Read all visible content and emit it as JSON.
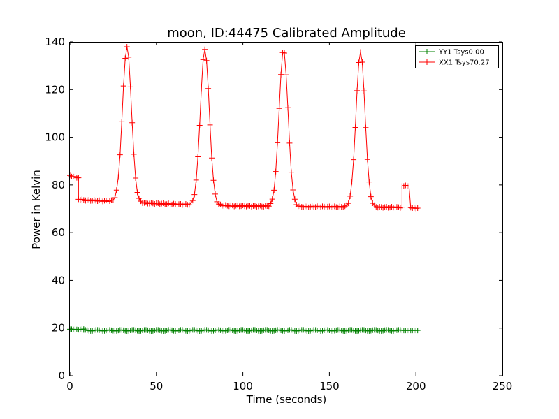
{
  "chart_data": {
    "type": "line",
    "title": "moon, ID:44475 Calibrated Amplitude",
    "xlabel": "Time (seconds)",
    "ylabel": "Power in Kelvin",
    "xlim": [
      0,
      250
    ],
    "ylim": [
      0,
      140
    ],
    "xticks": [
      "0",
      "50",
      "100",
      "150",
      "200",
      "250"
    ],
    "yticks": [
      "0",
      "20",
      "40",
      "60",
      "80",
      "100",
      "120",
      "140"
    ],
    "grid": false,
    "legend_position": "top-right",
    "marker": "+",
    "series": [
      {
        "name": "YY1 Tsys0.00",
        "color": "#008000",
        "segments": [
          {
            "x": [
              0,
              1,
              2,
              3,
              4,
              5,
              6,
              7,
              8
            ],
            "y": [
              19.5,
              19.5,
              19.4,
              19.5,
              19.4,
              19.3,
              19.4,
              19.5,
              19.6
            ],
            "dense": true
          },
          {
            "x_start": 8,
            "x_end": 192,
            "y_base": 19.0,
            "y_amp": 0.4
          },
          {
            "x": [
              193,
              194,
              195,
              196,
              197,
              198,
              199,
              200,
              201
            ],
            "y": [
              19.0,
              19.0,
              19.0,
              19.0,
              19.0,
              19.0,
              19.0,
              19.0,
              19.0
            ],
            "dense": true
          }
        ]
      },
      {
        "name": "XX1 Tsys70.27",
        "color": "#ff0000",
        "segments": [
          {
            "x": [
              0,
              1,
              2,
              3,
              4,
              5
            ],
            "y": [
              84,
              83.5,
              83.5,
              83.5,
              83,
              83
            ],
            "dense": true
          },
          {
            "x": [
              5,
              6,
              7,
              8,
              9
            ],
            "y": [
              74,
              73.8,
              74,
              73.7,
              73.6
            ],
            "dense": true
          },
          {
            "x_start": 9,
            "x_end": 192,
            "baseline": [
              [
                9,
                73.6
              ],
              [
                25,
                73.2
              ],
              [
                40,
                72.5
              ],
              [
                70,
                71.7
              ],
              [
                100,
                71.2
              ],
              [
                130,
                70.9
              ],
              [
                160,
                70.8
              ],
              [
                192,
                70.6
              ]
            ],
            "peaks": [
              [
                33,
                138
              ],
              [
                78,
                137
              ],
              [
                123.5,
                136.5
              ],
              [
                168,
                136
              ]
            ],
            "peak_sigma": 2.6
          },
          {
            "x": [
              192,
              193,
              194,
              195,
              196
            ],
            "y": [
              79.5,
              79.5,
              79.8,
              79.5,
              79.5
            ],
            "dense": true
          },
          {
            "x": [
              197,
              198,
              199,
              200,
              201
            ],
            "y": [
              70.5,
              70.3,
              70.4,
              70.2,
              70.3
            ],
            "dense": true
          }
        ]
      }
    ]
  }
}
